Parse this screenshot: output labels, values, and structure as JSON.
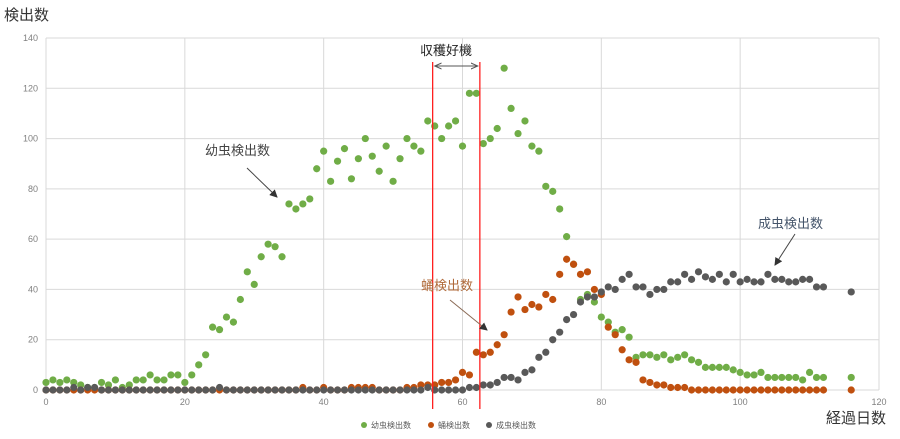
{
  "chart_data": {
    "type": "scatter",
    "ylabel": "検出数",
    "xlabel": "経過日数",
    "xlim": [
      0,
      120
    ],
    "ylim": [
      0,
      140
    ],
    "xticks": [
      0,
      20,
      40,
      60,
      80,
      100,
      120
    ],
    "yticks": [
      0,
      20,
      40,
      60,
      80,
      100,
      120,
      140
    ],
    "grid": true,
    "legend_position": "bottom",
    "x": [
      0,
      1,
      2,
      3,
      4,
      5,
      6,
      7,
      8,
      9,
      10,
      11,
      12,
      13,
      14,
      15,
      16,
      17,
      18,
      19,
      20,
      21,
      22,
      23,
      24,
      25,
      26,
      27,
      28,
      29,
      30,
      31,
      32,
      33,
      34,
      35,
      36,
      37,
      38,
      39,
      40,
      41,
      42,
      43,
      44,
      45,
      46,
      47,
      48,
      49,
      50,
      51,
      52,
      53,
      54,
      55,
      56,
      57,
      58,
      59,
      60,
      61,
      62,
      63,
      64,
      65,
      66,
      67,
      68,
      69,
      70,
      71,
      72,
      73,
      74,
      75,
      76,
      77,
      78,
      79,
      80,
      81,
      82,
      83,
      84,
      85,
      86,
      87,
      88,
      89,
      90,
      91,
      92,
      93,
      94,
      95,
      96,
      97,
      98,
      99,
      100,
      101,
      102,
      103,
      104,
      105,
      106,
      107,
      108,
      109,
      110,
      111,
      112,
      116
    ],
    "series": [
      {
        "name": "幼虫検出数",
        "color": "#70ad47",
        "values": [
          3,
          4,
          3,
          4,
          3,
          2,
          1,
          1,
          3,
          2,
          4,
          1,
          2,
          4,
          4,
          6,
          4,
          4,
          6,
          6,
          3,
          6,
          10,
          14,
          25,
          24,
          29,
          27,
          36,
          47,
          42,
          53,
          58,
          57,
          53,
          74,
          72,
          74,
          76,
          88,
          95,
          83,
          91,
          96,
          84,
          92,
          100,
          93,
          87,
          97,
          83,
          92,
          100,
          97,
          95,
          107,
          105,
          100,
          105,
          107,
          97,
          118,
          118,
          98,
          100,
          104,
          128,
          112,
          102,
          107,
          97,
          95,
          81,
          79,
          72,
          61,
          50,
          36,
          38,
          35,
          29,
          27,
          23,
          24,
          21,
          13,
          14,
          14,
          13,
          14,
          12,
          13,
          14,
          12,
          11,
          9,
          9,
          9,
          9,
          8,
          7,
          6,
          6,
          7,
          5,
          5,
          5,
          5,
          5,
          4,
          7,
          5,
          5,
          5
        ]
      },
      {
        "name": "蛹検出数",
        "color": "#c0500f",
        "values": [
          0,
          0,
          0,
          0,
          0,
          0,
          0,
          0,
          0,
          0,
          0,
          0,
          0,
          0,
          0,
          0,
          0,
          0,
          0,
          0,
          0,
          0,
          0,
          0,
          0,
          0,
          0,
          0,
          0,
          0,
          0,
          0,
          0,
          0,
          0,
          0,
          0,
          1,
          0,
          0,
          1,
          0,
          0,
          0,
          1,
          1,
          1,
          1,
          0,
          0,
          0,
          0,
          1,
          1,
          2,
          2,
          2,
          3,
          3,
          4,
          7,
          6,
          15,
          14,
          15,
          18,
          22,
          31,
          37,
          32,
          34,
          33,
          38,
          36,
          46,
          52,
          50,
          46,
          47,
          40,
          38,
          25,
          22,
          16,
          12,
          11,
          4,
          3,
          2,
          2,
          1,
          1,
          1,
          0,
          0,
          0,
          0,
          0,
          0,
          0,
          0,
          0,
          0,
          0,
          0,
          0,
          0,
          0,
          0,
          0,
          0,
          0,
          0,
          0
        ]
      },
      {
        "name": "成虫検出数",
        "color": "#595959",
        "values": [
          0,
          0,
          0,
          0,
          1,
          0,
          1,
          1,
          0,
          0,
          0,
          0,
          0,
          0,
          0,
          0,
          0,
          0,
          0,
          0,
          0,
          0,
          0,
          0,
          0,
          1,
          0,
          0,
          0,
          0,
          0,
          0,
          0,
          0,
          0,
          0,
          0,
          0,
          0,
          0,
          0,
          0,
          0,
          0,
          0,
          0,
          0,
          0,
          0,
          0,
          0,
          0,
          0,
          0,
          0,
          1,
          0,
          0,
          0,
          0,
          0,
          1,
          1,
          2,
          2,
          3,
          5,
          5,
          4,
          7,
          8,
          13,
          15,
          20,
          23,
          28,
          30,
          35,
          37,
          37,
          39,
          41,
          40,
          44,
          46,
          41,
          41,
          38,
          40,
          40,
          43,
          43,
          46,
          44,
          47,
          45,
          44,
          46,
          43,
          46,
          43,
          44,
          43,
          43,
          46,
          44,
          44,
          43,
          43,
          44,
          44,
          41,
          41,
          39
        ]
      }
    ],
    "annotations": {
      "harvest_window": {
        "label": "収穫好機",
        "x_start": 55.7,
        "x_end": 62.5
      },
      "larva": "幼虫検出数",
      "pupa": "蛹検出数",
      "adult": "成虫検出数"
    }
  }
}
